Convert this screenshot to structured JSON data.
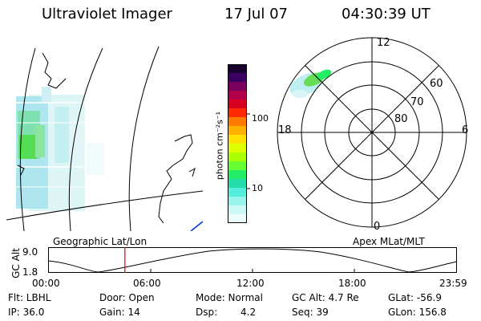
{
  "header": {
    "instrument": "Ultraviolet Imager",
    "date": "17 Jul 07",
    "time": "04:30:39 UT"
  },
  "colorbar": {
    "unit_label": "photon cm⁻²s⁻¹",
    "ticks": [
      "100",
      "10"
    ],
    "colors": [
      "#1a0030",
      "#3a0060",
      "#7a0060",
      "#b0004a",
      "#d80020",
      "#ff2a00",
      "#ff7a00",
      "#ffb000",
      "#ffe000",
      "#ddff00",
      "#aaff00",
      "#66ff33",
      "#22ee66",
      "#22ddaa",
      "#55eedd",
      "#99f4ee",
      "#ccf8f6",
      "#eafcfb"
    ]
  },
  "polar_plot": {
    "mlt_labels": [
      "12",
      "18",
      "6",
      "0"
    ],
    "lat_labels": [
      "60",
      "70",
      "80"
    ]
  },
  "timeline": {
    "left_label": "Geographic Lat/Lon",
    "right_label": "Apex MLat/MLT",
    "y_axis_label": "GC Alt",
    "y_ticks": [
      "9.0",
      "1.8"
    ],
    "x_ticks": [
      "00:00",
      "06:00",
      "12:00",
      "18:00",
      "23:59"
    ],
    "marker_time_hours": 4.51
  },
  "status": {
    "flt": "Flt: LBHL",
    "ip": "IP: 36.0",
    "door": "Door: Open",
    "gain": "Gain: 14",
    "mode": "Mode: Normal",
    "dsp_label": "Dsp:",
    "dsp_value": "4.2",
    "gc_alt": "GC Alt: 4.7 Re",
    "seq": "Seq: 39",
    "glat": "GLat: -56.9",
    "glon": "GLon: 156.8"
  },
  "colors": {
    "marker": "#dd0000",
    "coast_blue": "#0033cc"
  }
}
